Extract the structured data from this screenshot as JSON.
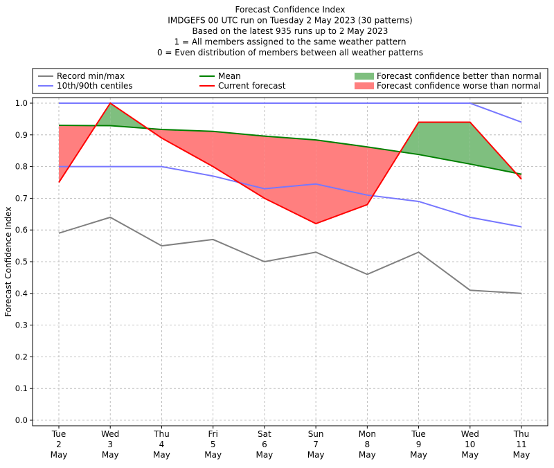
{
  "chart_data": {
    "type": "line",
    "title": [
      "Forecast Confidence Index",
      "IMDGEFS 00 UTC run on Tuesday 2 May 2023 (30 patterns)",
      "Based on the latest 935 runs up to 2 May 2023",
      "1 = All members assigned to the same weather pattern",
      "0 = Even distribution of members between all weather patterns"
    ],
    "ylabel": "Forecast Confidence Index",
    "xlabel": "",
    "ylim": [
      0,
      1.0
    ],
    "yticks": [
      "0.0",
      "0.1",
      "0.2",
      "0.3",
      "0.4",
      "0.5",
      "0.6",
      "0.7",
      "0.8",
      "0.9",
      "1.0"
    ],
    "grid": true,
    "categories": [
      [
        "Tue",
        "2",
        "May"
      ],
      [
        "Wed",
        "3",
        "May"
      ],
      [
        "Thu",
        "4",
        "May"
      ],
      [
        "Fri",
        "5",
        "May"
      ],
      [
        "Sat",
        "6",
        "May"
      ],
      [
        "Sun",
        "7",
        "May"
      ],
      [
        "Mon",
        "8",
        "May"
      ],
      [
        "Tue",
        "9",
        "May"
      ],
      [
        "Wed",
        "10",
        "May"
      ],
      [
        "Thu",
        "11",
        "May"
      ]
    ],
    "series": [
      {
        "name": "Record min/max",
        "color": "#808080",
        "role": "record_max",
        "values": [
          1.0,
          1.0,
          1.0,
          1.0,
          1.0,
          1.0,
          1.0,
          1.0,
          1.0,
          1.0
        ]
      },
      {
        "name": "Record min/max",
        "color": "#808080",
        "role": "record_min",
        "values": [
          0.59,
          0.64,
          0.55,
          0.57,
          0.5,
          0.53,
          0.46,
          0.53,
          0.41,
          0.4
        ]
      },
      {
        "name": "10th/90th centiles",
        "color": "#7777ff",
        "role": "centile_90",
        "values": [
          1.0,
          1.0,
          1.0,
          1.0,
          1.0,
          1.0,
          1.0,
          1.0,
          1.0,
          0.94
        ]
      },
      {
        "name": "10th/90th centiles",
        "color": "#7777ff",
        "role": "centile_10",
        "values": [
          0.8,
          0.8,
          0.8,
          0.77,
          0.73,
          0.745,
          0.71,
          0.69,
          0.64,
          0.61
        ]
      },
      {
        "name": "Mean",
        "color": "#008000",
        "role": "mean",
        "values": [
          0.93,
          0.929,
          0.917,
          0.911,
          0.896,
          0.884,
          0.862,
          0.838,
          0.808,
          0.776
        ]
      },
      {
        "name": "Current forecast",
        "color": "#ff0000",
        "role": "current",
        "values": [
          0.75,
          1.0,
          0.89,
          0.8,
          0.7,
          0.62,
          0.68,
          0.94,
          0.94,
          0.76
        ]
      }
    ],
    "legend": {
      "placement": "top",
      "entries": [
        {
          "label": "Record min/max",
          "kind": "line",
          "color": "#808080"
        },
        {
          "label": "10th/90th centiles",
          "kind": "line",
          "color": "#7777ff"
        },
        {
          "label": "Mean",
          "kind": "line",
          "color": "#008000"
        },
        {
          "label": "Current forecast",
          "kind": "line",
          "color": "#ff0000"
        },
        {
          "label": "Forecast confidence better than normal",
          "kind": "patch",
          "color": "#7fbf7f"
        },
        {
          "label": "Forecast confidence worse than normal",
          "kind": "patch",
          "color": "#ff7f7f"
        }
      ]
    },
    "fills": {
      "better_color": "#7fbf7f",
      "worse_color": "#ff7f7f"
    }
  }
}
